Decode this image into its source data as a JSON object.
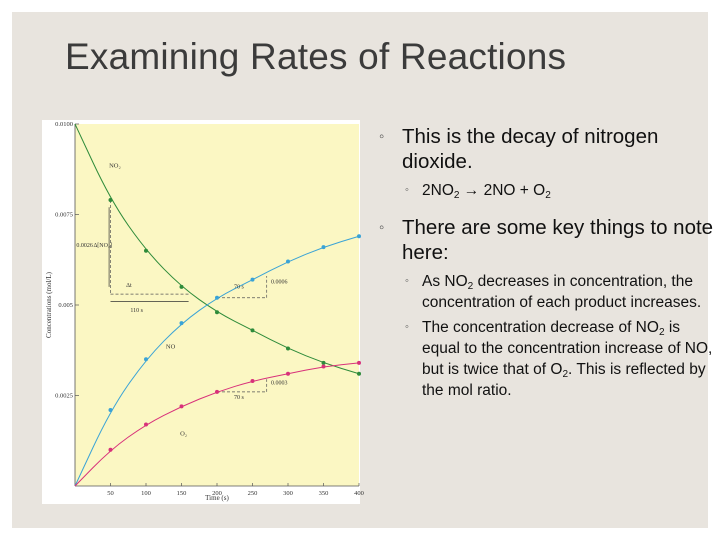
{
  "slide": {
    "title": "Examining Rates of Reactions",
    "bullets": [
      {
        "text": "This is the decay of nitrogen dioxide."
      },
      {
        "parts": [
          "2NO",
          "2",
          " → 2NO + O",
          "2"
        ]
      },
      {
        "text": "There are some key things to note here:"
      },
      {
        "parts": [
          "As NO",
          "2",
          " decreases in concentration, the concentration of each product increases."
        ]
      },
      {
        "parts": [
          "The concentration decrease of NO",
          "2",
          " is equal to the concentration increase of NO, but is twice that of O",
          "2",
          ".  This is reflected by the mol ratio."
        ]
      }
    ]
  },
  "chart_data": {
    "type": "line",
    "xlabel": "Time (s)",
    "ylabel": "Concentrations (mol/L)",
    "xlim": [
      0,
      400
    ],
    "ylim": [
      0,
      0.01
    ],
    "x_ticks": [
      "50",
      "100",
      "150",
      "200",
      "250",
      "300",
      "350",
      "400"
    ],
    "y_ticks": [
      "0.0025",
      "0.005",
      "0.0075",
      "0.0100"
    ],
    "series": [
      {
        "name": "NO2",
        "color": "#2e8b3a",
        "x": [
          0,
          50,
          100,
          150,
          200,
          250,
          300,
          350,
          400
        ],
        "values": [
          0.01,
          0.0079,
          0.0065,
          0.0055,
          0.0048,
          0.0043,
          0.0038,
          0.0034,
          0.0031
        ]
      },
      {
        "name": "NO",
        "color": "#3aa3d6",
        "x": [
          0,
          50,
          100,
          150,
          200,
          250,
          300,
          350,
          400
        ],
        "values": [
          0,
          0.0021,
          0.0035,
          0.0045,
          0.0052,
          0.0057,
          0.0062,
          0.0066,
          0.0069
        ]
      },
      {
        "name": "O2",
        "color": "#d8317a",
        "x": [
          0,
          50,
          100,
          150,
          200,
          250,
          300,
          350,
          400
        ],
        "values": [
          0,
          0.001,
          0.0017,
          0.0022,
          0.0026,
          0.0029,
          0.0031,
          0.0033,
          0.0034
        ]
      }
    ],
    "annotations": {
      "delta_no2": "Δ[NO₂]",
      "value_0026": "0.0026",
      "delta_t": "Δt",
      "t110": "110 s",
      "t70a": "70 s",
      "v0006": "0.0006",
      "t70b": "70 s",
      "v0003": "0.0003"
    }
  }
}
